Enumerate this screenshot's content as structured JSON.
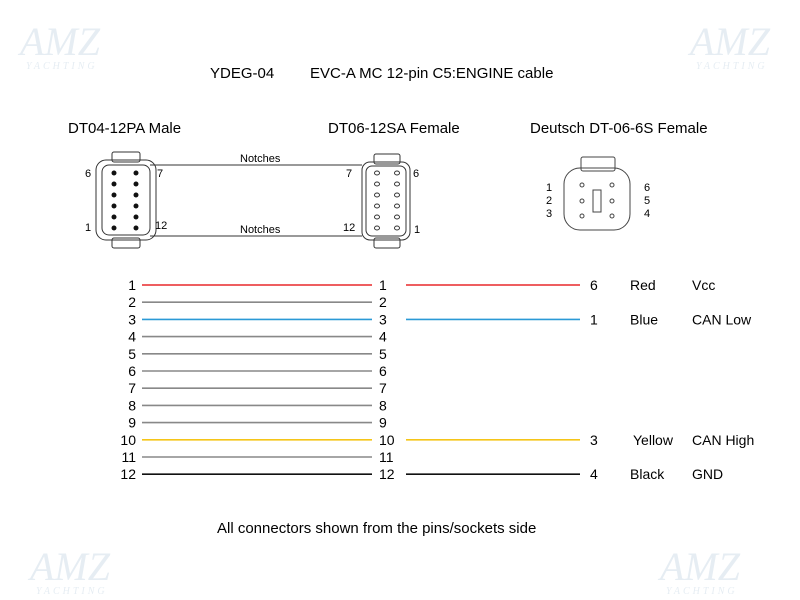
{
  "watermark": {
    "brand": "AMZ",
    "sub": "YACHTING"
  },
  "title": {
    "part": "YDEG-04",
    "description": "EVC-A MC 12-pin C5:ENGINE cable"
  },
  "connectors": {
    "male": {
      "label": "DT04-12PA Male",
      "pin_top_left": "6",
      "pin_top_right": "7",
      "pin_bottom_left": "1",
      "pin_bottom_right": "12"
    },
    "female12": {
      "label": "DT06-12SA Female",
      "pin_top_left": "7",
      "pin_top_right": "6",
      "pin_bottom_left": "12",
      "pin_bottom_right": "1"
    },
    "female6": {
      "label": "Deutsch DT-06-6S Female",
      "left_pins": [
        "1",
        "2",
        "3"
      ],
      "right_pins": [
        "6",
        "5",
        "4"
      ]
    },
    "notches_top": "Notches",
    "notches_bottom": "Notches"
  },
  "wires": [
    {
      "left": "1",
      "mid": "1",
      "color": "#e8282b",
      "right_pin": "6",
      "color_name": "Red",
      "signal": "Vcc"
    },
    {
      "left": "2",
      "mid": "2",
      "color": "#888888"
    },
    {
      "left": "3",
      "mid": "3",
      "color": "#2b9ad6",
      "right_pin": "1",
      "color_name": "Blue",
      "signal": "CAN Low"
    },
    {
      "left": "4",
      "mid": "4",
      "color": "#888888"
    },
    {
      "left": "5",
      "mid": "5",
      "color": "#888888"
    },
    {
      "left": "6",
      "mid": "6",
      "color": "#888888"
    },
    {
      "left": "7",
      "mid": "7",
      "color": "#888888"
    },
    {
      "left": "8",
      "mid": "8",
      "color": "#888888"
    },
    {
      "left": "9",
      "mid": "9",
      "color": "#888888"
    },
    {
      "left": "10",
      "mid": "10",
      "color": "#f5c518",
      "right_pin": "3",
      "color_name": "Yellow",
      "signal": "CAN High"
    },
    {
      "left": "11",
      "mid": "11",
      "color": "#888888"
    },
    {
      "left": "12",
      "mid": "12",
      "color": "#111111",
      "right_pin": "4",
      "color_name": "Black",
      "signal": "GND"
    }
  ],
  "footer": "All connectors shown from the pins/sockets side"
}
